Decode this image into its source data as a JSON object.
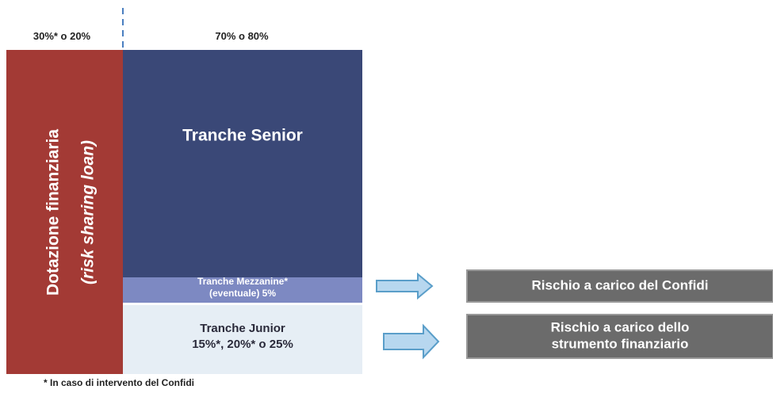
{
  "diagram": {
    "top_labels": {
      "left": "30%* o 20%",
      "right": "70% o 80%"
    },
    "funding": {
      "title": "Dotazione finanziaria",
      "subtitle": "(risk sharing loan)"
    },
    "tranches": {
      "senior": {
        "lines": [
          "Tranche Senior"
        ]
      },
      "mezzanine": {
        "lines": [
          "Tranche Mezzanine*",
          "(eventuale) 5%"
        ]
      },
      "junior": {
        "lines": [
          "Tranche Junior",
          "15%*, 20%* o 25%"
        ]
      }
    },
    "risks": [
      {
        "lines": [
          "Rischio a carico del Confidi"
        ]
      },
      {
        "lines": [
          "Rischio a carico dello",
          "strumento finanziario"
        ]
      }
    ],
    "footnote": "* In caso di intervento del Confidi"
  }
}
